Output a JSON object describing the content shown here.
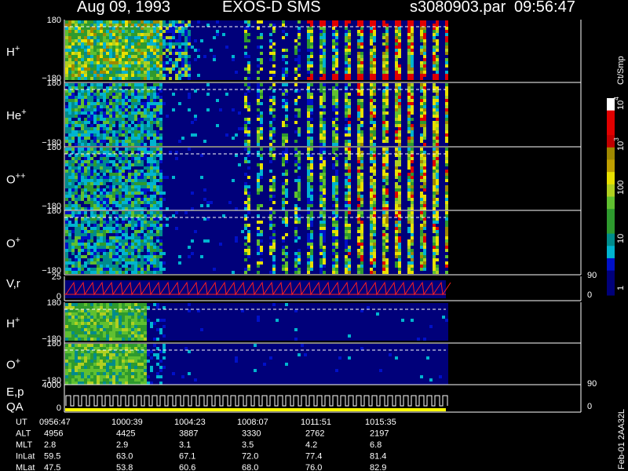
{
  "header": {
    "date": "Aug 09, 1993",
    "instrument": "EXOS-D SMS",
    "file": "s3080903.par",
    "time": "09:56:47"
  },
  "panels": [
    {
      "label": {
        "base": "H",
        "sup": "+"
      },
      "ticks": [
        "180",
        "−180"
      ]
    },
    {
      "label": {
        "base": "He",
        "sup": "+"
      },
      "ticks": [
        "180",
        "−180"
      ]
    },
    {
      "label": {
        "base": "O",
        "sup": "++"
      },
      "ticks": [
        "180",
        "−180"
      ]
    },
    {
      "label": {
        "base": "O",
        "sup": "+"
      },
      "ticks": [
        "180",
        "−180"
      ]
    },
    {
      "label": {
        "base": "V,r"
      },
      "ticks": [
        "25",
        "0"
      ],
      "right_ticks": [
        "90",
        "0"
      ]
    },
    {
      "label": {
        "base": "H",
        "sup": "+"
      },
      "ticks": [
        "180",
        "−180"
      ]
    },
    {
      "label": {
        "base": "O",
        "sup": "+"
      },
      "ticks": [
        "180",
        "−180"
      ]
    },
    {
      "label": {
        "base": "E,p"
      },
      "label2": "QA",
      "ticks": [
        "4000",
        "0"
      ],
      "right_ticks": [
        "90",
        "0"
      ]
    }
  ],
  "colorbar": {
    "title": "Ct/Smp",
    "labels": [
      {
        "base": "10",
        "sup": "4"
      },
      {
        "base": "10",
        "sup": "3"
      },
      {
        "base": "100"
      },
      {
        "base": "10"
      },
      {
        "base": "1"
      }
    ]
  },
  "side_note": "Feb-01 2AA32L",
  "footer": {
    "rows": [
      {
        "name": "UT",
        "values": [
          "0956:47",
          "1000:39",
          "1004:23",
          "1008:07",
          "1011:51",
          "1015:35"
        ]
      },
      {
        "name": "ALT",
        "values": [
          "4956",
          "4425",
          "3887",
          "3330",
          "2762",
          "2197"
        ]
      },
      {
        "name": "MLT",
        "values": [
          "2.8",
          "2.9",
          "3.1",
          "3.5",
          "4.2",
          "6.8"
        ]
      },
      {
        "name": "InLat",
        "values": [
          "59.5",
          "63.0",
          "67.1",
          "72.0",
          "77.4",
          "81.4"
        ]
      },
      {
        "name": "MLat",
        "values": [
          "47.5",
          "53.8",
          "60.6",
          "68.0",
          "76.0",
          "82.9"
        ]
      }
    ]
  }
}
